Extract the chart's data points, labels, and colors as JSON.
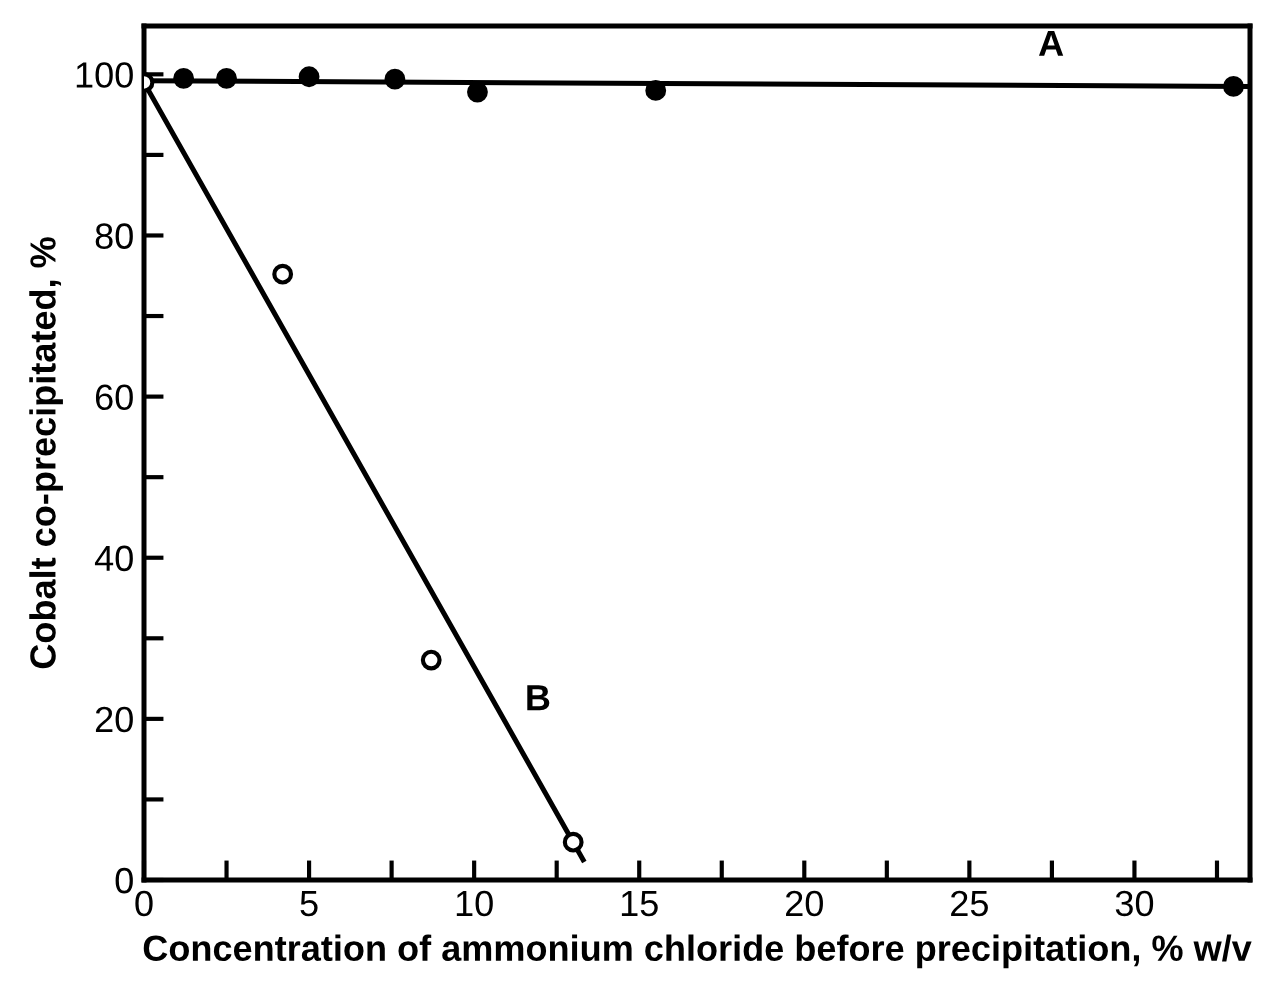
{
  "chart_data": {
    "type": "scatter",
    "xlabel": "Concentration of ammonium chloride before precipitation, % w/v",
    "ylabel": "Cobalt co-precipitated, %",
    "xlim": [
      0,
      33.5
    ],
    "ylim": [
      0,
      106
    ],
    "xticks": [
      0,
      {
        "value": 2.5,
        "label": null
      },
      5,
      {
        "value": 7.5,
        "label": null
      },
      10,
      {
        "value": 12.5,
        "label": null
      },
      15,
      {
        "value": 17.5,
        "label": null
      },
      20,
      {
        "value": 22.5,
        "label": null
      },
      25,
      {
        "value": 27.5,
        "label": null
      },
      30,
      {
        "value": 32.5,
        "label": null
      }
    ],
    "yticks": [
      0,
      {
        "value": 10,
        "label": null
      },
      20,
      {
        "value": 30,
        "label": null
      },
      40,
      {
        "value": 50,
        "label": null
      },
      60,
      {
        "value": 70,
        "label": null
      },
      80,
      {
        "value": 90,
        "label": null
      },
      100
    ],
    "grid": false,
    "legend": false,
    "series": [
      {
        "marker": "circle",
        "color": "#000000",
        "x": [
          1.2,
          2.5,
          5.0,
          7.6,
          10.1,
          15.5,
          33.0
        ],
        "values": [
          99.5,
          99.5,
          99.7,
          99.4,
          97.8,
          98.0,
          98.5
        ]
      },
      {
        "type": "line",
        "name": "A",
        "marker": "none",
        "line_style": "solid",
        "color": "#000000",
        "x": [
          0,
          33.5
        ],
        "values": [
          99.2,
          98.5
        ]
      },
      {
        "marker": "circle",
        "color": "#ffffff",
        "x": [
          0,
          4.2,
          8.7,
          13.0
        ],
        "values": [
          99.0,
          75.2,
          27.3,
          4.7
        ]
      },
      {
        "type": "line",
        "name": "B",
        "marker": "none",
        "line_style": "solid",
        "color": "#000000",
        "x": [
          0,
          13.3
        ],
        "values": [
          99.0,
          2.5
        ]
      }
    ]
  }
}
